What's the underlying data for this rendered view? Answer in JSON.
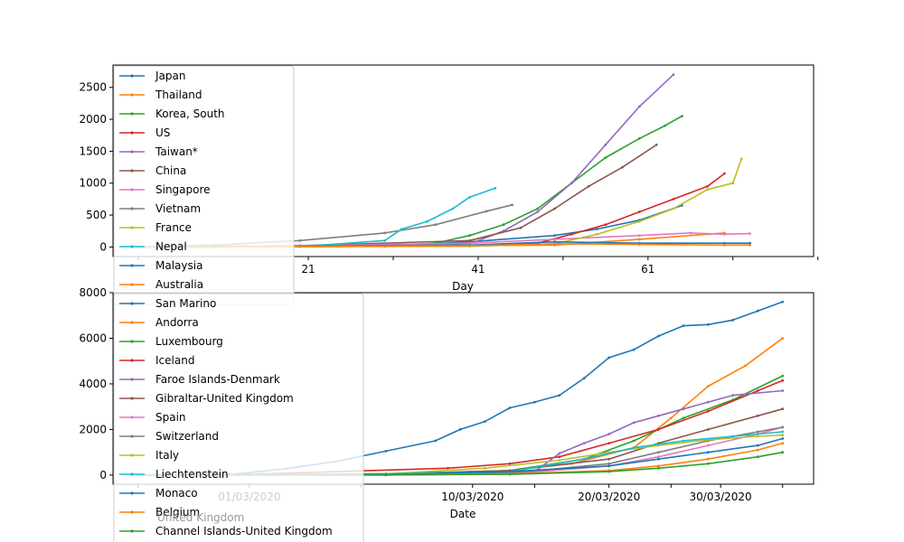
{
  "chart_data": [
    {
      "type": "line",
      "xlabel": "Day",
      "ylabel": "",
      "xlim": [
        -2,
        80.5
      ],
      "ylim": [
        -150,
        2850
      ],
      "xticks": [
        {
          "v": 21,
          "label": "21"
        },
        {
          "v": 41,
          "label": "41"
        },
        {
          "v": 61,
          "label": "61"
        }
      ],
      "xtick_marks_only": [
        1,
        31,
        51,
        71,
        81
      ],
      "yticks": [
        0,
        500,
        1000,
        1500,
        2000,
        2500
      ],
      "legend": {
        "location": "upper-left",
        "entries": [
          "Japan",
          "Thailand",
          "Korea, South",
          "US",
          "Taiwan*",
          "China",
          "Singapore",
          "Vietnam",
          "France",
          "Nepal",
          "Malaysia",
          "Australia"
        ]
      },
      "series": [
        {
          "name": "Japan",
          "color": "#1f77b4",
          "x": [
            1,
            10,
            20,
            30,
            40,
            50,
            55,
            60,
            65
          ],
          "y": [
            0,
            2,
            5,
            20,
            80,
            180,
            280,
            420,
            650
          ]
        },
        {
          "name": "Thailand",
          "color": "#ff7f0e",
          "x": [
            1,
            20,
            40,
            50,
            60,
            70
          ],
          "y": [
            0,
            10,
            20,
            30,
            120,
            220
          ]
        },
        {
          "name": "Korea, South",
          "color": "#2ca02c",
          "x": [
            1,
            30,
            36,
            40,
            44,
            48,
            52,
            56,
            60,
            63,
            65
          ],
          "y": [
            0,
            10,
            60,
            180,
            350,
            600,
            1000,
            1400,
            1700,
            1900,
            2050
          ]
        },
        {
          "name": "US",
          "color": "#d62728",
          "x": [
            1,
            20,
            40,
            48,
            52,
            56,
            60,
            64,
            68,
            70
          ],
          "y": [
            0,
            5,
            20,
            60,
            200,
            350,
            550,
            750,
            950,
            1150
          ]
        },
        {
          "name": "Taiwan*",
          "color": "#9467bd",
          "x": [
            1,
            20,
            40,
            44,
            48,
            52,
            56,
            60,
            64
          ],
          "y": [
            0,
            10,
            50,
            250,
            550,
            1000,
            1600,
            2200,
            2700
          ]
        },
        {
          "name": "China",
          "color": "#8c564b",
          "x": [
            1,
            20,
            40,
            46,
            50,
            54,
            58,
            62
          ],
          "y": [
            0,
            20,
            100,
            300,
            600,
            950,
            1250,
            1600
          ]
        },
        {
          "name": "Singapore",
          "color": "#e377c2",
          "x": [
            1,
            20,
            40,
            50,
            60,
            66,
            70,
            73
          ],
          "y": [
            0,
            20,
            60,
            120,
            180,
            220,
            200,
            210
          ]
        },
        {
          "name": "Vietnam",
          "color": "#7f7f7f",
          "x": [
            1,
            10,
            20,
            30,
            36,
            42,
            45
          ],
          "y": [
            0,
            30,
            100,
            220,
            350,
            560,
            660
          ]
        },
        {
          "name": "France",
          "color": "#bcbd22",
          "x": [
            1,
            40,
            50,
            55,
            60,
            64,
            68,
            71,
            72
          ],
          "y": [
            0,
            10,
            50,
            200,
            400,
            600,
            900,
            1000,
            1380
          ]
        },
        {
          "name": "Nepal",
          "color": "#17becf",
          "x": [
            1,
            20,
            30,
            32,
            35,
            38,
            40,
            43
          ],
          "y": [
            0,
            5,
            100,
            280,
            400,
            600,
            780,
            920
          ]
        },
        {
          "name": "Malaysia",
          "color": "#1f77b4",
          "x": [
            1,
            40,
            50,
            60,
            70,
            73
          ],
          "y": [
            0,
            30,
            80,
            60,
            60,
            60
          ]
        },
        {
          "name": "Australia",
          "color": "#ff7f0e",
          "x": [
            1,
            40,
            50,
            60,
            70,
            73
          ],
          "y": [
            0,
            20,
            50,
            40,
            30,
            30
          ]
        }
      ]
    },
    {
      "type": "line",
      "xlabel": "Date",
      "ylabel": "",
      "xlim": [
        -2,
        54.5
      ],
      "ylim": [
        -400,
        8000
      ],
      "xticks": [
        {
          "v": 9,
          "label": "01/03/2020"
        },
        {
          "v": 27,
          "label": "10/03/2020"
        },
        {
          "v": 38,
          "label": "20/03/2020"
        },
        {
          "v": 47,
          "label": "30/03/2020"
        }
      ],
      "xtick_marks_only": [
        0,
        18,
        32,
        43,
        52
      ],
      "yticks": [
        0,
        2000,
        4000,
        6000,
        8000
      ],
      "legend": {
        "location": "upper-left",
        "entries": [
          "San Marino",
          "Andorra",
          "Luxembourg",
          "Iceland",
          "Faroe Islands-Denmark",
          "Gibraltar-United Kingdom",
          "Spain",
          "Switzerland",
          "Italy",
          "Liechtenstein",
          "Monaco",
          "Belgium",
          "Channel Islands-United Kingdom"
        ],
        "partially_hidden_text": "United Kingdom"
      },
      "series": [
        {
          "name": "San Marino",
          "color": "#1f77b4",
          "x": [
            0,
            4,
            8,
            12,
            16,
            20,
            24,
            26,
            28,
            30,
            32,
            34,
            36,
            38,
            40,
            42,
            44,
            46,
            48,
            50,
            52
          ],
          "y": [
            0,
            0,
            60,
            280,
            600,
            1050,
            1500,
            2000,
            2350,
            2950,
            3200,
            3500,
            4250,
            5150,
            5500,
            6100,
            6550,
            6600,
            6800,
            7200,
            7600
          ]
        },
        {
          "name": "Andorra",
          "color": "#ff7f0e",
          "x": [
            0,
            20,
            30,
            35,
            40,
            43,
            46,
            49,
            52
          ],
          "y": [
            0,
            50,
            200,
            500,
            1200,
            2500,
            3900,
            4800,
            6000
          ]
        },
        {
          "name": "Luxembourg",
          "color": "#2ca02c",
          "x": [
            0,
            20,
            30,
            36,
            40,
            44,
            48,
            52
          ],
          "y": [
            0,
            50,
            200,
            700,
            1500,
            2500,
            3300,
            4350
          ]
        },
        {
          "name": "Iceland",
          "color": "#d62728",
          "x": [
            0,
            10,
            25,
            30,
            34,
            38,
            42,
            46,
            50,
            52
          ],
          "y": [
            0,
            50,
            300,
            500,
            800,
            1400,
            2000,
            2800,
            3700,
            4150
          ]
        },
        {
          "name": "Faroe Islands-Denmark",
          "color": "#9467bd",
          "x": [
            0,
            20,
            32,
            34,
            36,
            38,
            40,
            42,
            44,
            46,
            48,
            52
          ],
          "y": [
            0,
            20,
            150,
            950,
            1400,
            1800,
            2300,
            2600,
            2900,
            3200,
            3500,
            3700
          ]
        },
        {
          "name": "Gibraltar-United Kingdom",
          "color": "#8c564b",
          "x": [
            0,
            20,
            30,
            38,
            42,
            46,
            50,
            52
          ],
          "y": [
            0,
            50,
            200,
            700,
            1400,
            2000,
            2600,
            2900
          ]
        },
        {
          "name": "Spain",
          "color": "#e377c2",
          "x": [
            0,
            20,
            30,
            38,
            42,
            46,
            50,
            52
          ],
          "y": [
            0,
            10,
            50,
            400,
            800,
            1300,
            1800,
            2100
          ]
        },
        {
          "name": "Switzerland",
          "color": "#7f7f7f",
          "x": [
            0,
            20,
            30,
            38,
            42,
            46,
            50,
            52
          ],
          "y": [
            0,
            10,
            80,
            500,
            1000,
            1500,
            1900,
            2100
          ]
        },
        {
          "name": "Italy",
          "color": "#bcbd22",
          "x": [
            0,
            10,
            20,
            28,
            34,
            38,
            42,
            46,
            50,
            52
          ],
          "y": [
            0,
            10,
            50,
            300,
            650,
            1000,
            1300,
            1550,
            1700,
            1750
          ]
        },
        {
          "name": "Liechtenstein",
          "color": "#17becf",
          "x": [
            0,
            20,
            30,
            36,
            40,
            44,
            48,
            52
          ],
          "y": [
            0,
            50,
            150,
            700,
            1200,
            1500,
            1700,
            1900
          ]
        },
        {
          "name": "Monaco",
          "color": "#1f77b4",
          "x": [
            0,
            20,
            30,
            38,
            42,
            46,
            50,
            52
          ],
          "y": [
            0,
            20,
            150,
            400,
            700,
            1000,
            1300,
            1600
          ]
        },
        {
          "name": "Belgium",
          "color": "#ff7f0e",
          "x": [
            0,
            20,
            30,
            38,
            42,
            46,
            50,
            52
          ],
          "y": [
            0,
            5,
            50,
            200,
            400,
            700,
            1100,
            1400
          ]
        },
        {
          "name": "Channel Islands-United Kingdom",
          "color": "#2ca02c",
          "x": [
            0,
            20,
            30,
            38,
            42,
            46,
            50,
            52
          ],
          "y": [
            0,
            5,
            30,
            150,
            300,
            500,
            800,
            1000
          ]
        }
      ]
    }
  ]
}
